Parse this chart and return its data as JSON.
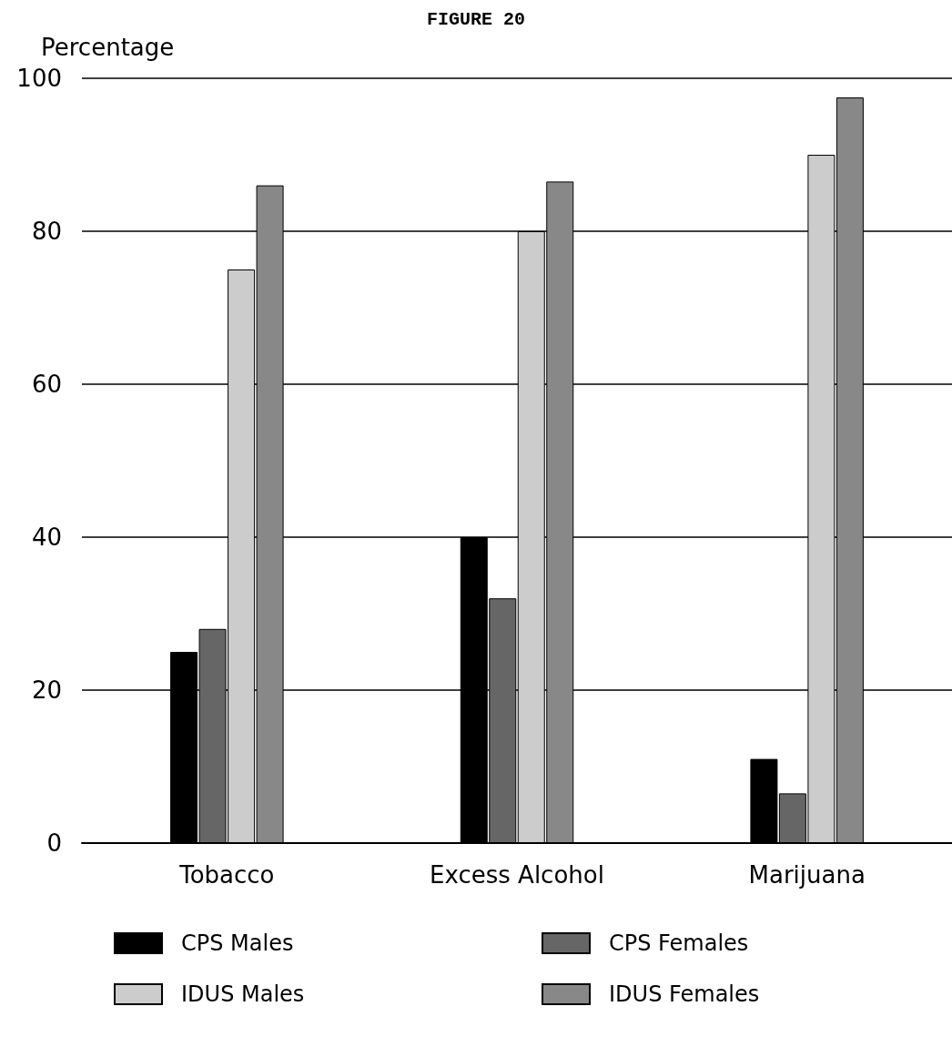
{
  "chart_data": {
    "type": "bar",
    "title": "FIGURE 20",
    "ylabel": "Percentage",
    "categories": [
      "Tobacco",
      "Excess Alcohol",
      "Marijuana"
    ],
    "series": [
      {
        "name": "CPS Males",
        "color": "#000000",
        "values": [
          25,
          40,
          11
        ]
      },
      {
        "name": "CPS Females",
        "color": "#666666",
        "values": [
          28,
          32,
          6.5
        ]
      },
      {
        "name": "IDUS Males",
        "color": "#cccccc",
        "values": [
          75,
          80,
          90
        ]
      },
      {
        "name": "IDUS Females",
        "color": "#888888",
        "values": [
          86,
          86.5,
          97.5
        ]
      }
    ],
    "ylim": [
      0,
      100
    ],
    "yticks": [
      0,
      20,
      40,
      60,
      80,
      100
    ],
    "grid": "y",
    "legend": "bottom"
  }
}
